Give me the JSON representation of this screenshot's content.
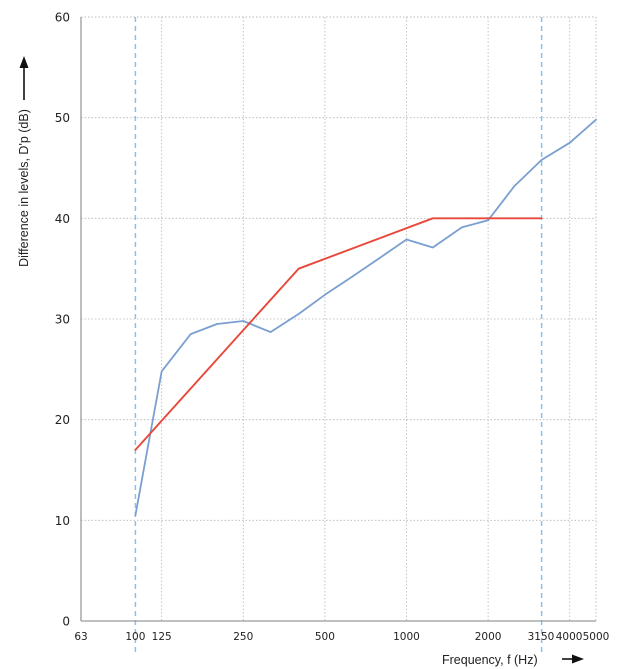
{
  "chart_data": {
    "type": "line",
    "title": "",
    "xlabel": "Frequency, f (Hz)",
    "ylabel": "Difference in levels, D'p (dB)",
    "x_scale": "log",
    "x_ticks": [
      63,
      100,
      125,
      250,
      500,
      1000,
      2000,
      3150,
      4000,
      5000
    ],
    "x_tick_labels": [
      "63",
      "100",
      "125",
      "250",
      "500",
      "1000",
      "2000",
      "3150",
      "4000",
      "5000"
    ],
    "ylim": [
      0,
      60
    ],
    "y_ticks": [
      0,
      10,
      20,
      30,
      40,
      50,
      60
    ],
    "grid": true,
    "reference_lines_x": [
      100,
      3150
    ],
    "series": [
      {
        "color": "#7a9fd0",
        "x": [
          100,
          125,
          160,
          200,
          250,
          315,
          400,
          500,
          630,
          800,
          1000,
          1250,
          1600,
          2000,
          2500,
          3150,
          4000,
          5000
        ],
        "y": [
          10.5,
          24.8,
          28.5,
          29.5,
          29.8,
          28.7,
          30.5,
          32.4,
          34.2,
          36.1,
          37.9,
          37.1,
          39.1,
          39.8,
          43.2,
          45.8,
          47.5,
          49.8
        ]
      },
      {
        "color": "#e8473a",
        "x": [
          100,
          400,
          1250,
          3150
        ],
        "y": [
          17,
          35,
          40,
          40
        ]
      }
    ]
  }
}
